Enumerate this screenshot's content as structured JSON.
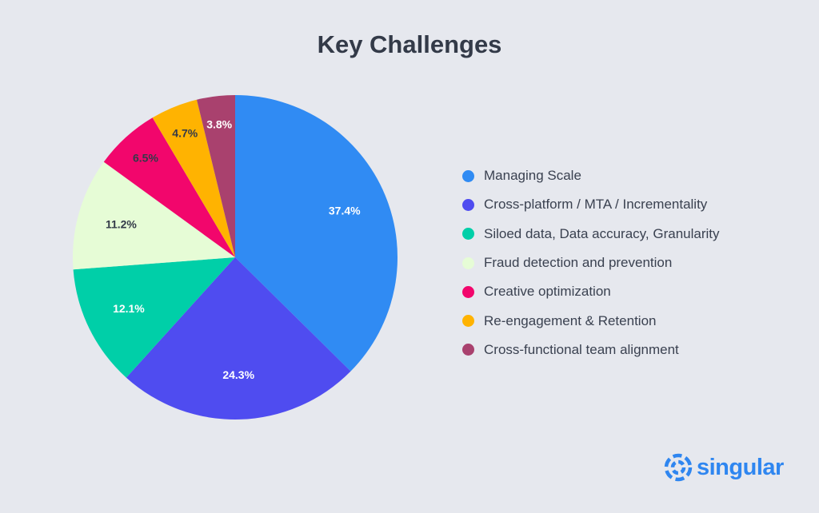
{
  "chart_data": {
    "type": "pie",
    "title": "Key Challenges",
    "categories": [
      "Managing Scale",
      "Cross-platform / MTA / Incrementality",
      "Siloed data, Data accuracy, Granularity",
      "Fraud detection and prevention",
      "Creative optimization",
      "Re-engagement & Retention",
      "Cross-functional team alignment"
    ],
    "values": [
      37.4,
      24.3,
      12.1,
      11.2,
      6.5,
      4.7,
      3.8
    ],
    "data_labels": [
      "37.4%",
      "24.3%",
      "12.1%",
      "11.2%",
      "6.5%",
      "4.7%",
      "3.8%"
    ],
    "colors": [
      "#308bf3",
      "#4f4cf0",
      "#00cfa8",
      "#e6fcd6",
      "#f2066c",
      "#ffb301",
      "#a9416e"
    ],
    "label_colors": [
      "#ffffff",
      "#ffffff",
      "#ffffff",
      "#333a48",
      "#333a48",
      "#333a48",
      "#ffffff"
    ],
    "legend_position": "right",
    "start_angle": "top",
    "direction": "clockwise"
  },
  "logo": {
    "text": "singular",
    "icon": "singular-swirl-icon",
    "color": "#2f86f0"
  }
}
